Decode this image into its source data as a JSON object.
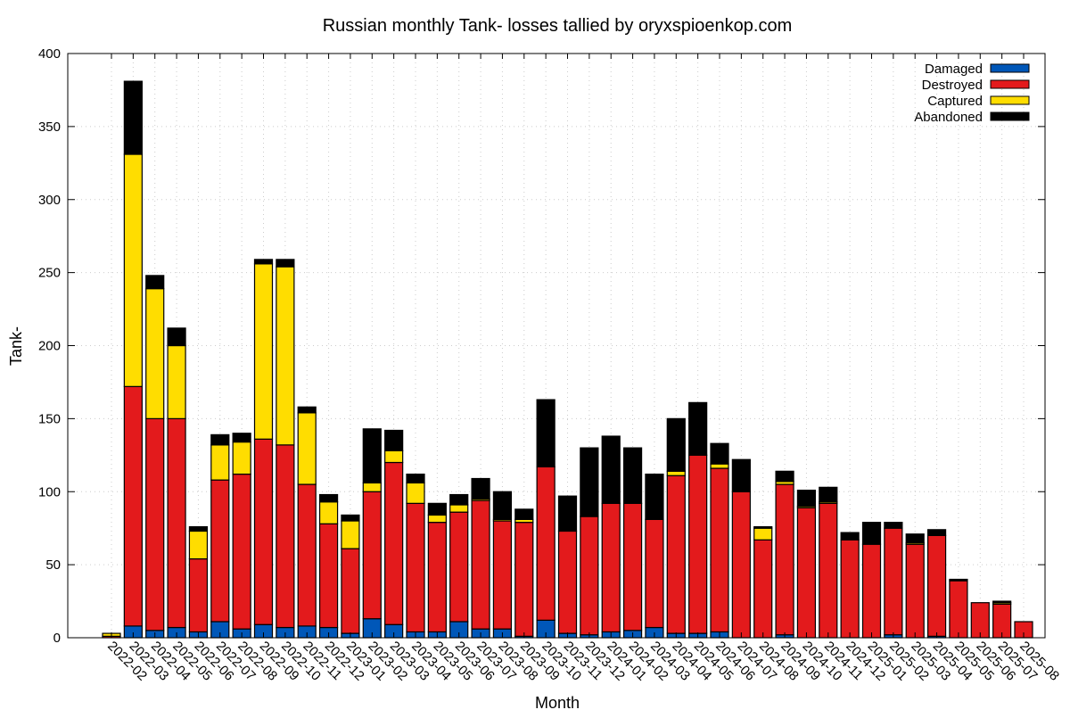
{
  "chart_data": {
    "type": "bar",
    "stacked": true,
    "title": "Russian monthly Tank- losses tallied by oryxspioenkop.com",
    "xlabel": "Month",
    "ylabel": "Tank-",
    "ylim": [
      0,
      400
    ],
    "yticks": [
      0,
      50,
      100,
      150,
      200,
      250,
      300,
      350,
      400
    ],
    "grid": true,
    "legend_position": "top-right",
    "categories": [
      "2022-02",
      "2022-03",
      "2022-04",
      "2022-05",
      "2022-06",
      "2022-07",
      "2022-08",
      "2022-09",
      "2022-10",
      "2022-11",
      "2022-12",
      "2023-01",
      "2023-02",
      "2023-03",
      "2023-04",
      "2023-05",
      "2023-06",
      "2023-07",
      "2023-08",
      "2023-09",
      "2023-10",
      "2023-11",
      "2023-12",
      "2024-01",
      "2024-02",
      "2024-03",
      "2024-04",
      "2024-05",
      "2024-06",
      "2024-07",
      "2024-08",
      "2024-09",
      "2024-10",
      "2024-11",
      "2024-12",
      "2025-01",
      "2025-02",
      "2025-03",
      "2025-04",
      "2025-05",
      "2025-06",
      "2025-07",
      "2025-08"
    ],
    "series": [
      {
        "name": "Damaged",
        "color": "#0057b8",
        "values": [
          0,
          8,
          5,
          7,
          4,
          11,
          6,
          9,
          7,
          8,
          7,
          3,
          13,
          9,
          4,
          4,
          11,
          6,
          6,
          1,
          12,
          3,
          2,
          4,
          5,
          7,
          3,
          3,
          4,
          0,
          0,
          2,
          0,
          0,
          0,
          0,
          2,
          0,
          1,
          0,
          0,
          0,
          0
        ]
      },
      {
        "name": "Destroyed",
        "color": "#e31a1c",
        "values": [
          1,
          164,
          145,
          143,
          50,
          97,
          106,
          127,
          125,
          97,
          71,
          58,
          87,
          111,
          88,
          75,
          75,
          88,
          74,
          78,
          105,
          70,
          81,
          88,
          87,
          74,
          108,
          122,
          112,
          100,
          67,
          103,
          89,
          92,
          67,
          64,
          73,
          64,
          69,
          39,
          24,
          23,
          11
        ]
      },
      {
        "name": "Captured",
        "color": "#ffdd00",
        "values": [
          2,
          159,
          89,
          50,
          19,
          24,
          22,
          120,
          122,
          49,
          15,
          19,
          6,
          8,
          14,
          5,
          5,
          1,
          1,
          2,
          0,
          0,
          0,
          0,
          0,
          0,
          3,
          0,
          3,
          0,
          8,
          2,
          1,
          1,
          0,
          0,
          0,
          1,
          0,
          0,
          0,
          1,
          0
        ]
      },
      {
        "name": "Abandoned",
        "color": "#000000",
        "values": [
          0,
          50,
          9,
          12,
          3,
          7,
          6,
          3,
          5,
          4,
          5,
          4,
          37,
          14,
          6,
          8,
          7,
          14,
          19,
          7,
          46,
          24,
          47,
          46,
          38,
          31,
          36,
          36,
          14,
          22,
          1,
          7,
          11,
          10,
          5,
          15,
          4,
          6,
          4,
          1,
          0,
          1,
          0
        ]
      }
    ]
  }
}
